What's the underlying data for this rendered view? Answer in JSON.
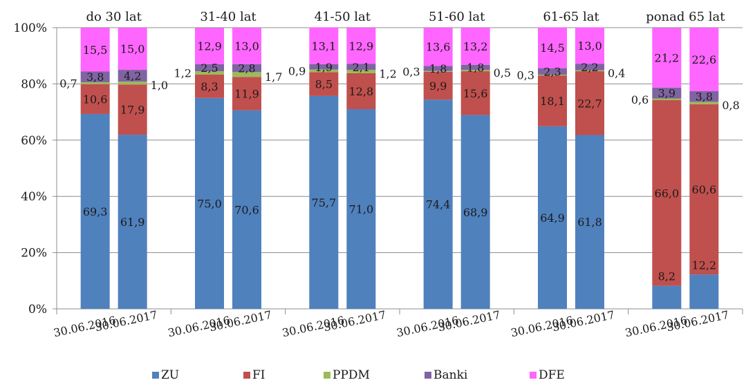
{
  "chart_data": {
    "type": "bar",
    "stacked": true,
    "percent": true,
    "groups": [
      "do 30 lat",
      "31-40 lat",
      "41-50 lat",
      "51-60 lat",
      "61-65 lat",
      "ponad 65 lat"
    ],
    "categories": [
      "30.06.2016",
      "30.06.2017"
    ],
    "y_ticks": [
      "0%",
      "20%",
      "40%",
      "60%",
      "80%",
      "100%"
    ],
    "ylim": [
      0,
      100
    ],
    "grid": true,
    "legend_position": "bottom",
    "series": [
      {
        "name": "ZU",
        "color": "#4f81bd",
        "values": [
          [
            69.3,
            61.9
          ],
          [
            75.0,
            70.6
          ],
          [
            75.7,
            71.0
          ],
          [
            74.4,
            68.9
          ],
          [
            64.9,
            61.8
          ],
          [
            8.2,
            12.2
          ]
        ],
        "labels": [
          [
            "69,3",
            "61,9"
          ],
          [
            "75,0",
            "70,6"
          ],
          [
            "75,7",
            "71,0"
          ],
          [
            "74,4",
            "68,9"
          ],
          [
            "64,9",
            "61,8"
          ],
          [
            "8,2",
            "12,2"
          ]
        ]
      },
      {
        "name": "FI",
        "color": "#c0504d",
        "values": [
          [
            10.6,
            17.9
          ],
          [
            8.3,
            11.9
          ],
          [
            8.5,
            12.8
          ],
          [
            9.9,
            15.6
          ],
          [
            18.1,
            22.7
          ],
          [
            66.0,
            60.6
          ]
        ],
        "labels": [
          [
            "10,6",
            "17,9"
          ],
          [
            "8,3",
            "11,9"
          ],
          [
            "8,5",
            "12,8"
          ],
          [
            "9,9",
            "15,6"
          ],
          [
            "18,1",
            "22,7"
          ],
          [
            "66,0",
            "60,6"
          ]
        ]
      },
      {
        "name": "PPDM",
        "color": "#9bbb59",
        "values": [
          [
            0.7,
            1.0
          ],
          [
            1.2,
            1.7
          ],
          [
            0.9,
            1.2
          ],
          [
            0.3,
            0.5
          ],
          [
            0.3,
            0.4
          ],
          [
            0.6,
            0.8
          ]
        ],
        "labels": [
          [
            "0,7",
            "1,0"
          ],
          [
            "1,2",
            "1,7"
          ],
          [
            "0,9",
            "1,2"
          ],
          [
            "0,3",
            "0,5"
          ],
          [
            "0,3",
            "0,4"
          ],
          [
            "0,6",
            "0,8"
          ]
        ]
      },
      {
        "name": "Banki",
        "color": "#8064a2",
        "values": [
          [
            3.8,
            4.2
          ],
          [
            2.5,
            2.8
          ],
          [
            1.9,
            2.1
          ],
          [
            1.8,
            1.8
          ],
          [
            2.3,
            2.2
          ],
          [
            3.9,
            3.8
          ]
        ],
        "labels": [
          [
            "3,8",
            "4,2"
          ],
          [
            "2,5",
            "2,8"
          ],
          [
            "1,9",
            "2,1"
          ],
          [
            "1,8",
            "1,8"
          ],
          [
            "2,3",
            "2,2"
          ],
          [
            "3,9",
            "3,8"
          ]
        ]
      },
      {
        "name": "DFE",
        "color": "#ff66ff",
        "values": [
          [
            15.5,
            15.0
          ],
          [
            12.9,
            13.0
          ],
          [
            13.1,
            12.9
          ],
          [
            13.6,
            13.2
          ],
          [
            14.5,
            13.0
          ],
          [
            21.2,
            22.6
          ]
        ],
        "labels": [
          [
            "15,5",
            "15,0"
          ],
          [
            "12,9",
            "13,0"
          ],
          [
            "13,1",
            "12,9"
          ],
          [
            "13,6",
            "13,2"
          ],
          [
            "14,5",
            "13,0"
          ],
          [
            "21,2",
            "22,6"
          ]
        ]
      }
    ]
  }
}
